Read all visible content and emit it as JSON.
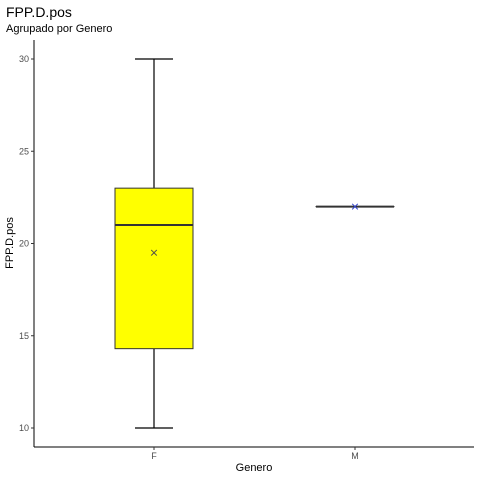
{
  "chart_data": {
    "type": "boxplot",
    "title": "FPP.D.pos",
    "subtitle": "Agrupado por Genero",
    "xlabel": "Genero",
    "ylabel": "FPP.D.pos",
    "categories": [
      "F",
      "M"
    ],
    "y_ticks": [
      10,
      15,
      20,
      25,
      30
    ],
    "ylim": [
      9.0,
      31.0
    ],
    "grid": false,
    "legend": "none",
    "boxes": [
      {
        "category": "F",
        "whisker_low": 10,
        "q1": 14.3,
        "median": 21,
        "q3": 23,
        "whisker_high": 30,
        "mean": 19.5,
        "fill": "#ffff00"
      },
      {
        "category": "M",
        "whisker_low": 22,
        "q1": 22,
        "median": 22,
        "q3": 22,
        "whisker_high": 22,
        "mean": 22,
        "fill": "#ffff00"
      }
    ],
    "colors": {
      "box_fill": "#ffff00",
      "box_stroke": "#333333",
      "mean_marker": "#4d4d4d",
      "mean_marker_m": "#3344cc"
    }
  }
}
